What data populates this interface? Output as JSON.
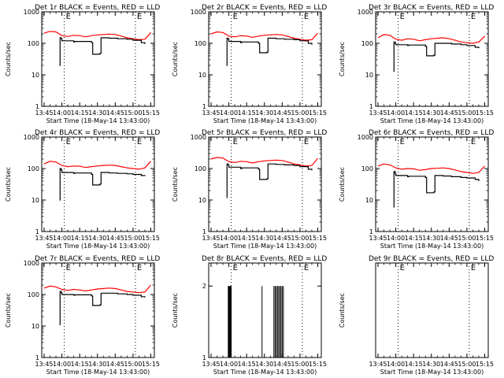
{
  "chart_data": [
    {
      "type": "line",
      "title": "Det 1r BLACK = Events, RED = LLD",
      "xlabel": "Start Time (18-May-14 13:43:00)",
      "ylabel": "Counts/sec",
      "yscale": "log",
      "xlim": [
        -2,
        93
      ],
      "ylim": [
        1,
        1000
      ],
      "xtick_labels": [
        "13:45",
        "14:00",
        "14:15",
        "14:30",
        "14:45",
        "15:00",
        "15:15"
      ],
      "ytick_labels": [
        "1",
        "10",
        "100",
        "1000"
      ],
      "event_markers": [
        {
          "label": "E",
          "x": 17
        },
        {
          "label": "E",
          "x": 77
        }
      ],
      "series": [
        {
          "name": "LLD",
          "color": "#ff0000",
          "x": [
            0,
            5,
            10,
            15,
            20,
            25,
            30,
            35,
            40,
            45,
            50,
            55,
            60,
            65,
            70,
            75,
            80,
            85,
            90
          ],
          "y": [
            210,
            240,
            230,
            175,
            165,
            180,
            175,
            160,
            175,
            185,
            190,
            195,
            190,
            170,
            150,
            140,
            130,
            135,
            220
          ]
        },
        {
          "name": "Events",
          "color": "#000000",
          "x": [
            13,
            13.5,
            14.5,
            15,
            25,
            26,
            40,
            41,
            47,
            48,
            55,
            62,
            70,
            75,
            82,
            85
          ],
          "y": [
            20,
            150,
            140,
            120,
            110,
            115,
            105,
            45,
            48,
            150,
            145,
            140,
            135,
            125,
            105,
            95
          ]
        }
      ]
    },
    {
      "type": "line",
      "title": "Det 2r BLACK = Events, RED = LLD",
      "xlabel": "Start Time (18-May-14 13:43:00)",
      "ylabel": "Counts/sec",
      "yscale": "log",
      "xlim": [
        -2,
        93
      ],
      "ylim": [
        1,
        1000
      ],
      "xtick_labels": [
        "13:45",
        "14:00",
        "14:15",
        "14:30",
        "14:45",
        "15:00",
        "15:15"
      ],
      "ytick_labels": [
        "1",
        "10",
        "100",
        "1000"
      ],
      "event_markers": [
        {
          "label": "E",
          "x": 17
        },
        {
          "label": "E",
          "x": 77
        }
      ],
      "series": [
        {
          "name": "LLD",
          "color": "#ff0000",
          "x": [
            0,
            5,
            10,
            15,
            20,
            25,
            30,
            35,
            40,
            45,
            50,
            55,
            60,
            65,
            70,
            75,
            80,
            85,
            90
          ],
          "y": [
            200,
            230,
            220,
            170,
            160,
            175,
            170,
            155,
            170,
            180,
            185,
            190,
            185,
            165,
            145,
            135,
            125,
            130,
            210
          ]
        },
        {
          "name": "Events",
          "color": "#000000",
          "x": [
            13,
            13.5,
            14.5,
            15,
            25,
            26,
            40,
            41,
            47,
            48,
            55,
            62,
            70,
            75,
            82,
            85
          ],
          "y": [
            20,
            145,
            135,
            115,
            105,
            110,
            100,
            50,
            52,
            145,
            140,
            135,
            130,
            120,
            100,
            90
          ]
        }
      ]
    },
    {
      "type": "line",
      "title": "Det 3r BLACK = Events, RED = LLD",
      "xlabel": "Start Time (18-May-14 13:43:00)",
      "ylabel": "Counts/sec",
      "yscale": "log",
      "xlim": [
        -2,
        93
      ],
      "ylim": [
        1,
        1000
      ],
      "xtick_labels": [
        "13:45",
        "14:00",
        "14:15",
        "14:30",
        "14:45",
        "15:00",
        "15:15"
      ],
      "ytick_labels": [
        "1",
        "10",
        "100",
        "1000"
      ],
      "event_markers": [
        {
          "label": "E",
          "x": 17
        },
        {
          "label": "E",
          "x": 77
        }
      ],
      "series": [
        {
          "name": "LLD",
          "color": "#ff0000",
          "x": [
            0,
            5,
            10,
            15,
            20,
            25,
            30,
            35,
            40,
            45,
            50,
            55,
            60,
            65,
            70,
            75,
            80,
            85,
            90
          ],
          "y": [
            150,
            190,
            180,
            135,
            125,
            140,
            135,
            120,
            130,
            140,
            145,
            150,
            140,
            125,
            110,
            105,
            100,
            110,
            170
          ]
        },
        {
          "name": "Events",
          "color": "#000000",
          "x": [
            13,
            13.5,
            14.5,
            15,
            25,
            26,
            40,
            41,
            47,
            48,
            55,
            62,
            70,
            75,
            82,
            85
          ],
          "y": [
            13,
            110,
            100,
            90,
            85,
            88,
            80,
            40,
            42,
            100,
            100,
            95,
            90,
            85,
            75,
            70
          ]
        }
      ]
    },
    {
      "type": "line",
      "title": "Det 4r BLACK = Events, RED = LLD",
      "xlabel": "Start Time (18-May-14 13:43:00)",
      "ylabel": "Counts/sec",
      "yscale": "log",
      "xlim": [
        -2,
        93
      ],
      "ylim": [
        1,
        1000
      ],
      "xtick_labels": [
        "13:45",
        "14:00",
        "14:15",
        "14:30",
        "14:45",
        "15:00",
        "15:15"
      ],
      "ytick_labels": [
        "1",
        "10",
        "100",
        "1000"
      ],
      "event_markers": [
        {
          "label": "E",
          "x": 17
        },
        {
          "label": "E",
          "x": 77
        }
      ],
      "series": [
        {
          "name": "LLD",
          "color": "#ff0000",
          "x": [
            0,
            5,
            10,
            15,
            20,
            25,
            30,
            35,
            40,
            45,
            50,
            55,
            60,
            65,
            70,
            75,
            80,
            85,
            90
          ],
          "y": [
            140,
            170,
            160,
            125,
            115,
            120,
            118,
            108,
            115,
            120,
            125,
            128,
            125,
            115,
            105,
            100,
            95,
            105,
            170
          ]
        },
        {
          "name": "Events",
          "color": "#000000",
          "x": [
            13,
            13.5,
            14.5,
            15,
            25,
            26,
            40,
            41,
            47,
            48,
            55,
            62,
            70,
            75,
            82,
            85
          ],
          "y": [
            10,
            100,
            90,
            75,
            70,
            72,
            65,
            30,
            32,
            75,
            72,
            70,
            68,
            65,
            60,
            58
          ]
        }
      ]
    },
    {
      "type": "line",
      "title": "Det 5r BLACK = Events, RED = LLD",
      "xlabel": "Start Time (18-May-14 13:43:00)",
      "ylabel": "Counts/sec",
      "yscale": "log",
      "xlim": [
        -2,
        93
      ],
      "ylim": [
        1,
        1000
      ],
      "xtick_labels": [
        "13:45",
        "14:00",
        "14:15",
        "14:30",
        "14:45",
        "15:00",
        "15:15"
      ],
      "ytick_labels": [
        "1",
        "10",
        "100",
        "1000"
      ],
      "event_markers": [
        {
          "label": "E",
          "x": 17
        },
        {
          "label": "E",
          "x": 77
        }
      ],
      "series": [
        {
          "name": "LLD",
          "color": "#ff0000",
          "x": [
            0,
            5,
            10,
            15,
            20,
            25,
            30,
            35,
            40,
            45,
            50,
            55,
            60,
            65,
            70,
            75,
            80,
            85,
            90
          ],
          "y": [
            200,
            225,
            215,
            165,
            155,
            170,
            165,
            150,
            165,
            175,
            180,
            185,
            180,
            160,
            140,
            130,
            120,
            125,
            210
          ]
        },
        {
          "name": "Events",
          "color": "#000000",
          "x": [
            13,
            13.5,
            14.5,
            15,
            25,
            26,
            40,
            41,
            47,
            48,
            55,
            62,
            70,
            75,
            82,
            85
          ],
          "y": [
            12,
            140,
            130,
            110,
            100,
            105,
            95,
            45,
            47,
            140,
            135,
            130,
            125,
            115,
            95,
            88
          ]
        }
      ]
    },
    {
      "type": "line",
      "title": "Det 6r BLACK = Events, RED = LLD",
      "xlabel": "Start Time (18-May-14 13:43:00)",
      "ylabel": "Counts/sec",
      "yscale": "log",
      "xlim": [
        -2,
        93
      ],
      "ylim": [
        1,
        1000
      ],
      "xtick_labels": [
        "13:45",
        "14:00",
        "14:15",
        "14:30",
        "14:45",
        "15:00",
        "15:15"
      ],
      "ytick_labels": [
        "1",
        "10",
        "100",
        "1000"
      ],
      "event_markers": [
        {
          "label": "E",
          "x": 17
        },
        {
          "label": "E",
          "x": 77
        }
      ],
      "series": [
        {
          "name": "LLD",
          "color": "#ff0000",
          "x": [
            0,
            5,
            10,
            15,
            20,
            25,
            30,
            35,
            40,
            45,
            50,
            55,
            60,
            65,
            70,
            75,
            80,
            85,
            90
          ],
          "y": [
            120,
            140,
            130,
            105,
            95,
            100,
            98,
            88,
            92,
            100,
            102,
            105,
            100,
            90,
            80,
            75,
            70,
            75,
            120
          ]
        },
        {
          "name": "Events",
          "color": "#000000",
          "x": [
            13,
            13.5,
            14.5,
            15,
            25,
            26,
            40,
            41,
            47,
            48,
            55,
            62,
            70,
            75,
            82,
            85
          ],
          "y": [
            6,
            80,
            70,
            60,
            55,
            57,
            52,
            17,
            18,
            60,
            58,
            55,
            52,
            50,
            45,
            40
          ]
        }
      ]
    },
    {
      "type": "line",
      "title": "Det 7r BLACK = Events, RED = LLD",
      "xlabel": "Start Time (18-May-14 13:43:00)",
      "ylabel": "Counts/sec",
      "yscale": "log",
      "xlim": [
        -2,
        93
      ],
      "ylim": [
        1,
        1000
      ],
      "xtick_labels": [
        "13:45",
        "14:00",
        "14:15",
        "14:30",
        "14:45",
        "15:00",
        "15:15"
      ],
      "ytick_labels": [
        "1",
        "10",
        "100",
        "1000"
      ],
      "event_markers": [
        {
          "label": "E",
          "x": 17
        },
        {
          "label": "E",
          "x": 77
        }
      ],
      "series": [
        {
          "name": "LLD",
          "color": "#ff0000",
          "x": [
            0,
            5,
            10,
            15,
            20,
            25,
            30,
            35,
            40,
            45,
            50,
            55,
            60,
            65,
            70,
            75,
            80,
            85,
            90
          ],
          "y": [
            160,
            185,
            175,
            145,
            135,
            145,
            140,
            130,
            140,
            150,
            155,
            160,
            155,
            140,
            125,
            120,
            115,
            120,
            200
          ]
        },
        {
          "name": "Events",
          "color": "#000000",
          "x": [
            13,
            13.5,
            14.5,
            15,
            25,
            26,
            40,
            41,
            47,
            48,
            55,
            62,
            70,
            75,
            82,
            85
          ],
          "y": [
            11,
            125,
            115,
            100,
            95,
            98,
            90,
            45,
            47,
            110,
            110,
            105,
            100,
            95,
            85,
            80
          ]
        }
      ]
    },
    {
      "type": "line",
      "title": "Det 8r BLACK = Events, RED = LLD",
      "xlabel": "Start Time (18-May-14 13:43:00)",
      "ylabel": "Counts/sec",
      "yscale": "log",
      "xlim": [
        -2,
        93
      ],
      "ylim": [
        1,
        2.5
      ],
      "xtick_labels": [
        "13:45",
        "14:00",
        "14:15",
        "14:30",
        "14:45",
        "15:00",
        "15:15"
      ],
      "ytick_labels": [
        "1",
        "2"
      ],
      "event_markers": [
        {
          "label": "E",
          "x": 17
        },
        {
          "label": "E",
          "x": 77
        }
      ],
      "spikes": {
        "color": "#000000",
        "x": [
          14.5,
          15,
          15.5,
          16,
          16.5,
          17,
          43,
          53,
          54,
          55,
          56,
          57,
          58,
          59,
          60,
          61
        ],
        "y": [
          2,
          2,
          2,
          2,
          2,
          2,
          2,
          2,
          2,
          2,
          2,
          2,
          2,
          2,
          2,
          2
        ]
      },
      "series": []
    },
    {
      "type": "line",
      "title": "Det 9r BLACK = Events, RED = LLD",
      "xlabel": "Start Time (18-May-14 13:43:00)",
      "ylabel": "Counts/sec",
      "yscale": "log",
      "xlim": [
        -2,
        93
      ],
      "ylim": [
        1,
        2.5
      ],
      "xtick_labels": [
        "13:45",
        "14:00",
        "14:15",
        "14:30",
        "14:45",
        "15:00",
        "15:15"
      ],
      "ytick_labels": [],
      "event_markers": [
        {
          "label": "E",
          "x": 17
        },
        {
          "label": "E",
          "x": 77
        }
      ],
      "series": []
    }
  ]
}
